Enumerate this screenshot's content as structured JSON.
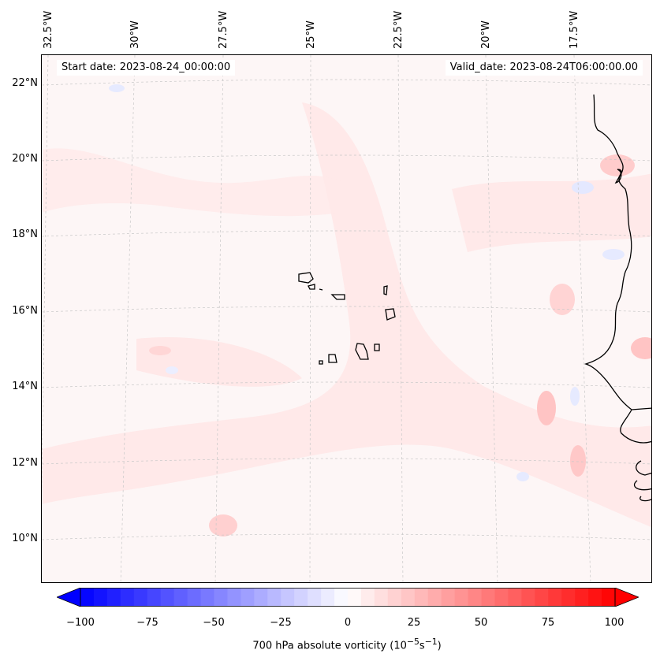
{
  "header": {
    "start_date": "Start date: 2023-08-24_00:00:00",
    "valid_date": "Valid_date: 2023-08-24T06:00:00.00"
  },
  "axes": {
    "lon_labels": [
      "32.5°W",
      "30°W",
      "27.5°W",
      "25°W",
      "22.5°W",
      "20°W",
      "17.5°W"
    ],
    "lat_labels": [
      "22°N",
      "20°N",
      "18°N",
      "16°N",
      "14°N",
      "12°N",
      "10°N"
    ]
  },
  "colorbar": {
    "ticks": [
      "−100",
      "−75",
      "−50",
      "−25",
      "0",
      "25",
      "50",
      "75",
      "100"
    ],
    "label": "700 hPa absolute vorticity (10",
    "label_exp1": "−5",
    "label_mid": "s",
    "label_exp2": "−1",
    "label_end": ")",
    "vmin": -100,
    "vmax": 100,
    "low_color": "#0000ff",
    "mid_color": "#ffffff",
    "high_color": "#ff0000"
  },
  "colors": {
    "coastline": "#000000",
    "gridline": "#c8c8c8",
    "background_field": "#fdf6f6"
  }
}
